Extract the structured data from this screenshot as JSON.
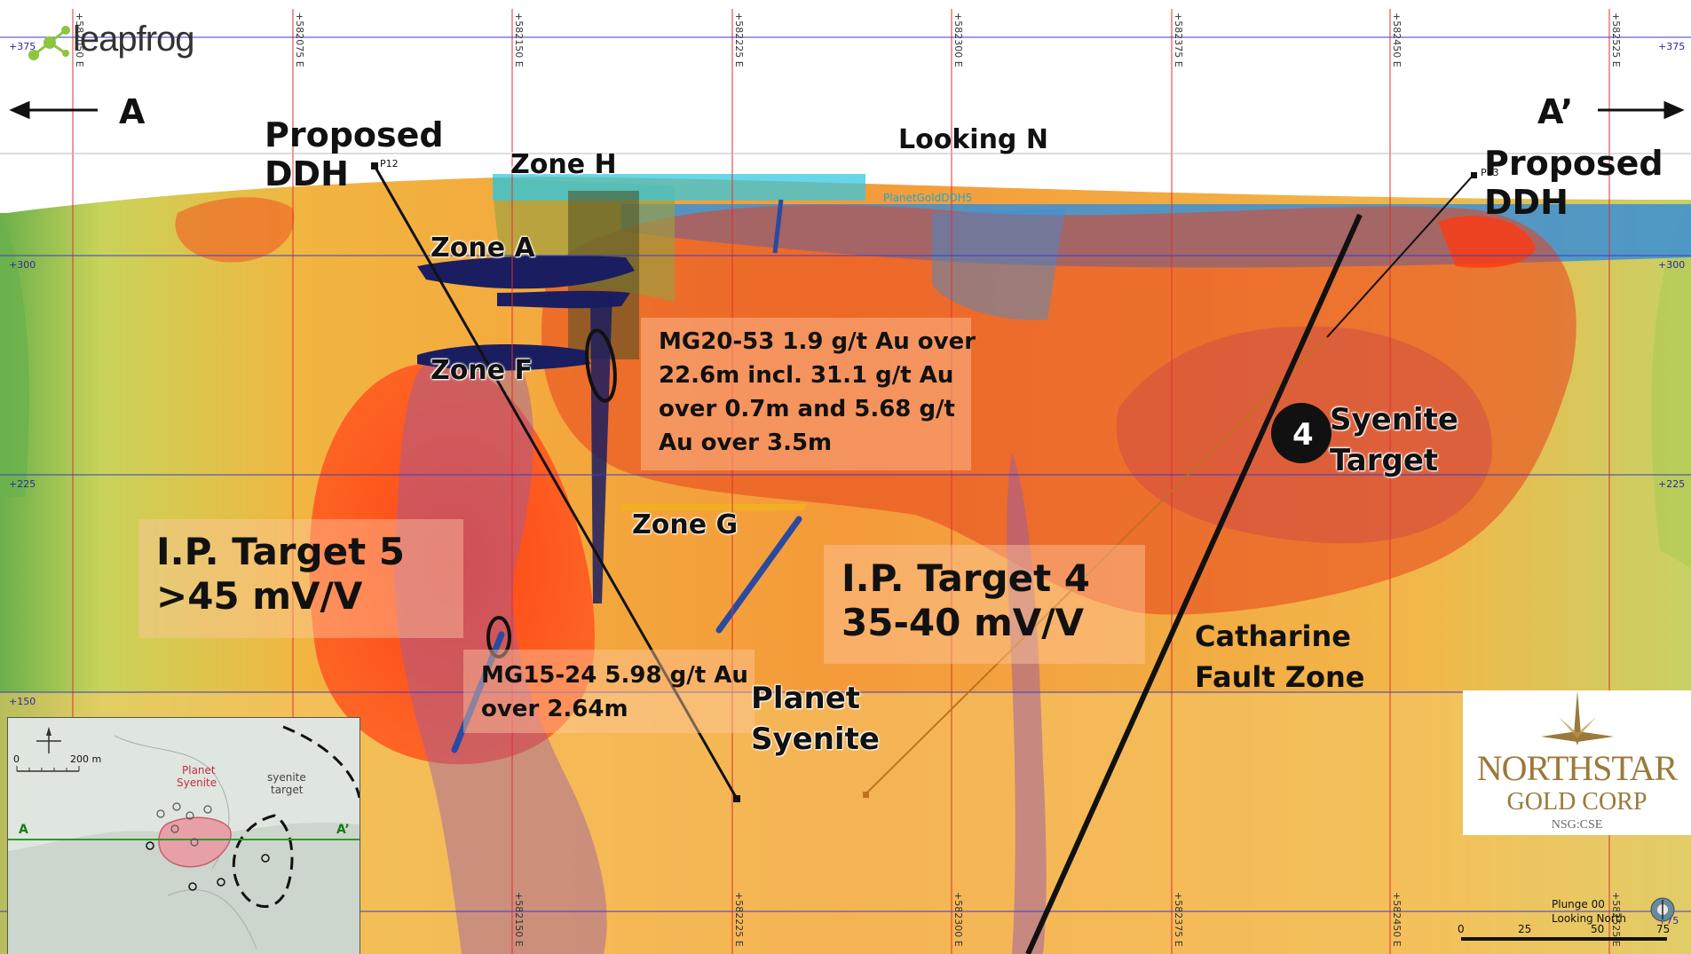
{
  "header": {
    "logo_text": "leapfrog",
    "section_start": "A",
    "section_end": "A’",
    "view_direction": "Looking N"
  },
  "grid": {
    "eastings": [
      "+582050 E",
      "+582075 E",
      "+582150 E",
      "+582225 E",
      "+582300 E",
      "+582375 E",
      "+582450 E",
      "+582525 E"
    ],
    "eastings_bottom": [
      "+582150 E",
      "+582225 E",
      "+582300 E",
      "+582375 E",
      "+582450 E",
      "+582525 E"
    ],
    "elevations": [
      "+375",
      "+300",
      "+225",
      "+150",
      "+75"
    ]
  },
  "labels": {
    "proposed_ddh_left": "Proposed DDH",
    "proposed_ddh_right": "Proposed DDH",
    "zone_h": "Zone H",
    "zone_a": "Zone A",
    "zone_f": "Zone F",
    "zone_g": "Zone G",
    "syenite_target_number": "4",
    "syenite_target": "Syenite Target",
    "planet_syenite": "Planet Syenite",
    "catharine_fault": "Catharine Fault Zone",
    "p12": "P12",
    "p13": "P13",
    "planetgold_ddh5": "PlanetGoldDDH5"
  },
  "intercepts": {
    "mg20_53": "MG20-53 1.9 g/t Au over 22.6m incl. 31.1 g/t Au over 0.7m and 5.68 g/t Au over 3.5m",
    "mg20_53_lines": [
      "MG20-53 1.9 g/t Au over",
      "22.6m incl. 31.1 g/t Au",
      "over 0.7m and 5.68 g/t",
      "Au over 3.5m"
    ],
    "mg15_24_lines": [
      "MG15-24 5.98 g/t Au",
      "over 2.64m"
    ]
  },
  "targets": {
    "ip5_title": "I.P. Target 5",
    "ip5_value": ">45 mV/V",
    "ip4_title": "I.P. Target 4",
    "ip4_value": "35-40 mV/V"
  },
  "inset": {
    "scale_zero": "0",
    "scale_label": "200 m",
    "planet_syenite_1": "Planet",
    "planet_syenite_2": "Syenite",
    "syenite_target_1": "syenite",
    "syenite_target_2": "target",
    "a_label": "A",
    "a_prime_label": "A’"
  },
  "company": {
    "name_1": "NORTHSTAR",
    "name_2": "GOLD CORP",
    "ticker": "NSG:CSE"
  },
  "scale": {
    "plunge": "Plunge 00",
    "looking": "Looking North",
    "ticks": [
      "0",
      "25",
      "50",
      "75"
    ]
  },
  "colors": {
    "grid_red": "#e03030",
    "grid_blue": "#3a3ac8",
    "gold": "#9a7a3a"
  }
}
